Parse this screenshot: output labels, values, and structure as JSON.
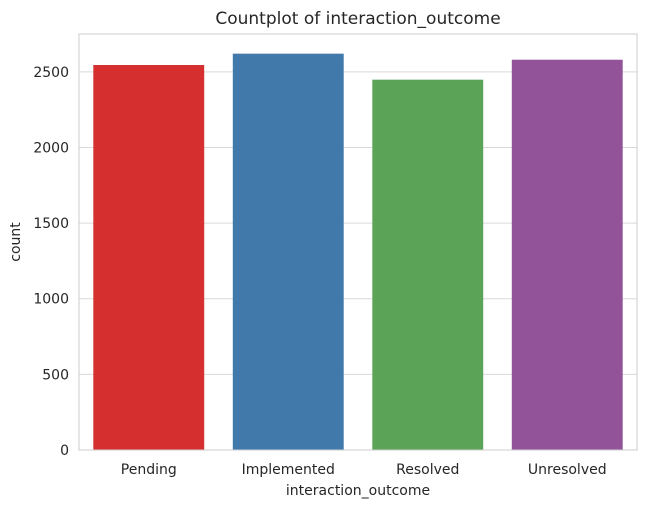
{
  "chart_data": {
    "type": "bar",
    "title": "Countplot of interaction_outcome",
    "xlabel": "interaction_outcome",
    "ylabel": "count",
    "categories": [
      "Pending",
      "Implemented",
      "Resolved",
      "Unresolved"
    ],
    "values": [
      2545,
      2620,
      2448,
      2580
    ],
    "colors": [
      "#d62f2f",
      "#4279ab",
      "#5aa357",
      "#925399"
    ],
    "ylim": [
      0,
      2750
    ],
    "yticks": [
      0,
      500,
      1000,
      1500,
      2000,
      2500
    ],
    "grid": true,
    "legend": "none"
  }
}
